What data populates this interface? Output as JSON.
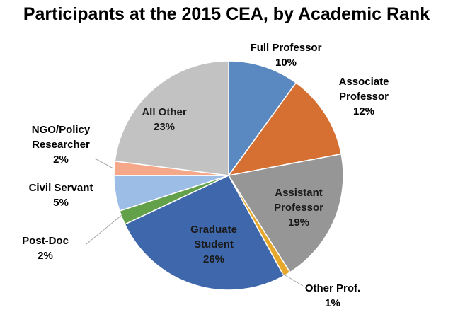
{
  "chart_data": {
    "type": "pie",
    "title": "Participants at the 2015 CEA, by Academic Rank",
    "slices": [
      {
        "name": "Full Professor",
        "value": 10,
        "label": "10%",
        "color": "#5a88c0"
      },
      {
        "name": "Associate Professor",
        "name_lines": [
          "Associate",
          "Professor"
        ],
        "value": 12,
        "label": "12%",
        "color": "#d56f32"
      },
      {
        "name": "Assistant Professor",
        "name_lines": [
          "Assistant",
          "Professor"
        ],
        "value": 19,
        "label": "19%",
        "color": "#969696"
      },
      {
        "name": "Other Prof.",
        "value": 1,
        "label": "1%",
        "color": "#e6a72a"
      },
      {
        "name": "Graduate Student",
        "name_lines": [
          "Graduate",
          "Student"
        ],
        "value": 26,
        "label": "26%",
        "color": "#3f67ac"
      },
      {
        "name": "Post-Doc",
        "value": 2,
        "label": "2%",
        "color": "#62a04a"
      },
      {
        "name": "Civil Servant",
        "value": 5,
        "label": "5%",
        "color": "#9cbde6"
      },
      {
        "name": "NGO/Policy Researcher",
        "name_lines": [
          "NGO/Policy",
          "Researcher"
        ],
        "value": 2,
        "label": "2%",
        "color": "#f4a889"
      },
      {
        "name": "All Other",
        "value": 23,
        "label": "23%",
        "color": "#c2c2c2"
      }
    ]
  }
}
